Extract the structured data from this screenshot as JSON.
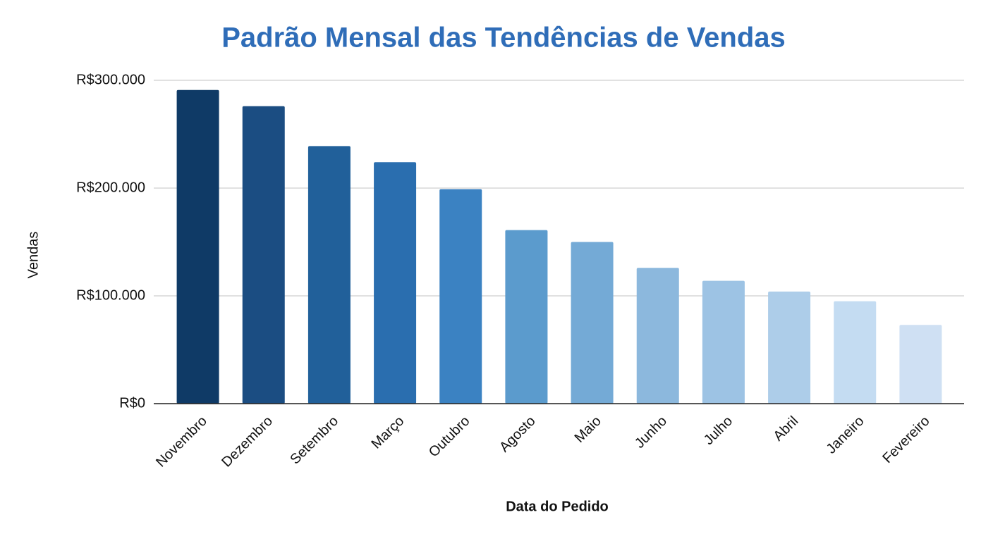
{
  "chart_data": {
    "type": "bar",
    "title": "Padrão Mensal das Tendências de Vendas",
    "x_label": "Data do Pedido",
    "y_label": "Vendas",
    "categories": [
      "Novembro",
      "Dezembro",
      "Setembro",
      "Março",
      "Outubro",
      "Agosto",
      "Maio",
      "Junho",
      "Julho",
      "Abril",
      "Janeiro",
      "Fevereiro"
    ],
    "values": [
      291000,
      276000,
      239000,
      224000,
      199000,
      161000,
      150000,
      126000,
      114000,
      104000,
      95000,
      73000
    ],
    "colors": [
      "#0f3a66",
      "#1b4d82",
      "#21609a",
      "#2a6eaf",
      "#3b82c2",
      "#5b9bcd",
      "#74aad6",
      "#8cb8dd",
      "#9dc3e4",
      "#adcde9",
      "#c4dcf2",
      "#cfe0f3"
    ],
    "ylim": [
      0,
      300000
    ],
    "yticks": [
      {
        "value": 0,
        "label": "R$0"
      },
      {
        "value": 100000,
        "label": "R$100.000"
      },
      {
        "value": 200000,
        "label": "R$200.000"
      },
      {
        "value": 300000,
        "label": "R$300.000"
      }
    ],
    "grid": true
  }
}
